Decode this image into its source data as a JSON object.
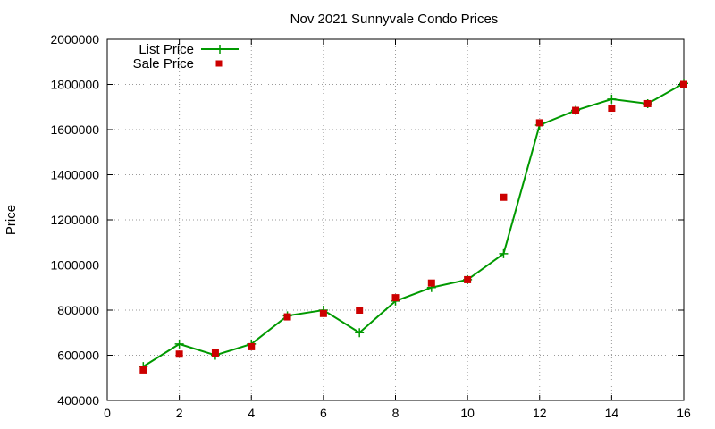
{
  "chart_data": {
    "type": "line",
    "title": "Nov 2021 Sunnyvale Condo Prices",
    "xlabel": "",
    "ylabel": "Price",
    "xlim": [
      0,
      16
    ],
    "ylim": [
      400000,
      2000000
    ],
    "x_ticks": [
      0,
      2,
      4,
      6,
      8,
      10,
      12,
      14,
      16
    ],
    "y_ticks": [
      400000,
      600000,
      800000,
      1000000,
      1200000,
      1400000,
      1600000,
      1800000,
      2000000
    ],
    "grid": true,
    "legend_position": "top-left",
    "series": [
      {
        "name": "List Price",
        "style": "line+cross",
        "color": "#009900",
        "x": [
          1,
          2,
          3,
          4,
          5,
          6,
          7,
          8,
          9,
          10,
          11,
          12,
          13,
          14,
          15,
          16
        ],
        "y": [
          550000,
          650000,
          600000,
          650000,
          775000,
          800000,
          700000,
          840000,
          900000,
          935000,
          1050000,
          1620000,
          1685000,
          1735000,
          1715000,
          1805000
        ]
      },
      {
        "name": "Sale Price",
        "style": "square",
        "color": "#cc0000",
        "x": [
          1,
          2,
          3,
          4,
          5,
          6,
          7,
          8,
          9,
          10,
          11,
          12,
          13,
          14,
          15,
          16
        ],
        "y": [
          535000,
          605000,
          610000,
          638000,
          770000,
          785000,
          800000,
          855000,
          920000,
          935000,
          1300000,
          1630000,
          1685000,
          1695000,
          1715000,
          1800000
        ]
      }
    ]
  }
}
